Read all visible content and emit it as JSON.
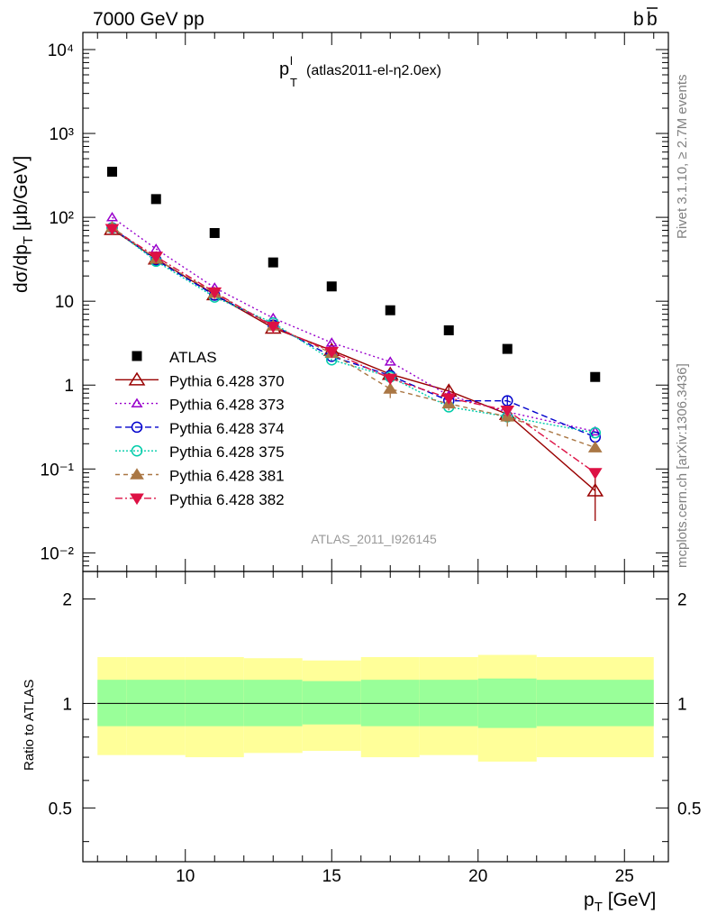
{
  "header": {
    "left": "7000 GeV pp",
    "right_base": "b",
    "right_bar": "b",
    "side_top": "Rivet 3.1.10, ≥ 2.7M events",
    "side_bottom": "mcplots.cern.ch [arXiv:1306.3436]"
  },
  "plot_label": {
    "main": "p",
    "sup": "l",
    "sub": "T",
    "rest": "(atlas2011-el-η2.0ex)"
  },
  "watermark": "ATLAS_2011_I926145",
  "axes": {
    "ylabel": {
      "a": "dσ/dp",
      "sub": "T",
      "b": " [μb/GeV]"
    },
    "ratio_ylabel": "Ratio to ATLAS",
    "xlabel": {
      "a": "p",
      "sub": "T",
      "b": " [GeV]"
    },
    "x_ticks": [
      "10",
      "15",
      "20",
      "25"
    ],
    "y_ticks": [
      "10⁻²",
      "10⁻¹",
      "1",
      "10",
      "10²",
      "10³",
      "10⁴"
    ],
    "ratio_ticks": [
      "0.5",
      "1",
      "2"
    ]
  },
  "chart_data": {
    "type": "scatter",
    "xlim": [
      6.5,
      26.5
    ],
    "ylim": [
      0.006,
      16000
    ],
    "yscale": "log",
    "ratio_ylim": [
      0.35,
      2.4
    ],
    "ratio_yscale": "log",
    "legend_position": "middle-left",
    "x": [
      7.5,
      9,
      11,
      13,
      15,
      17,
      19,
      21,
      24
    ],
    "bins": [
      [
        7,
        8
      ],
      [
        8,
        10
      ],
      [
        10,
        12
      ],
      [
        12,
        14
      ],
      [
        14,
        16
      ],
      [
        16,
        18
      ],
      [
        18,
        20
      ],
      [
        20,
        22
      ],
      [
        22,
        26
      ]
    ],
    "data": {
      "name": "ATLAS",
      "values": [
        350,
        165,
        65,
        29,
        15,
        7.8,
        4.5,
        2.7,
        1.25
      ]
    },
    "ratio_band_inner": [
      [
        0.86,
        1.17
      ],
      [
        0.86,
        1.17
      ],
      [
        0.86,
        1.17
      ],
      [
        0.86,
        1.17
      ],
      [
        0.87,
        1.16
      ],
      [
        0.86,
        1.17
      ],
      [
        0.86,
        1.17
      ],
      [
        0.85,
        1.18
      ],
      [
        0.86,
        1.17
      ]
    ],
    "ratio_band_outer": [
      [
        0.71,
        1.36
      ],
      [
        0.71,
        1.36
      ],
      [
        0.7,
        1.36
      ],
      [
        0.72,
        1.35
      ],
      [
        0.73,
        1.33
      ],
      [
        0.7,
        1.36
      ],
      [
        0.71,
        1.36
      ],
      [
        0.68,
        1.38
      ],
      [
        0.7,
        1.36
      ]
    ],
    "series": [
      {
        "name": "Pythia 6.428 370",
        "color": "#990000",
        "marker": "triangle-open",
        "dash": "",
        "values": [
          72,
          32,
          12,
          4.8,
          2.6,
          1.35,
          0.85,
          0.45,
          0.055
        ],
        "errors": [
          null,
          null,
          null,
          null,
          null,
          null,
          0.17,
          null,
          0.031
        ]
      },
      {
        "name": "Pythia 6.428 373",
        "color": "#9900cc",
        "marker": "triangle-open-small",
        "dash": "2,3",
        "values": [
          100,
          42,
          14.5,
          6.3,
          3.2,
          1.9,
          0.75,
          0.48,
          0.28
        ],
        "errors": []
      },
      {
        "name": "Pythia 6.428 374",
        "color": "#0000cc",
        "marker": "circle-open",
        "dash": "7,4",
        "values": [
          75,
          31,
          11.8,
          5.2,
          2.2,
          1.3,
          0.65,
          0.65,
          0.24
        ],
        "errors": [
          null,
          null,
          null,
          null,
          null,
          null,
          null,
          0.1,
          null
        ]
      },
      {
        "name": "Pythia 6.428 375",
        "color": "#00ccaa",
        "marker": "circle-open",
        "dash": "2,2",
        "values": [
          75,
          30,
          11.2,
          5.5,
          2.0,
          1.25,
          0.55,
          0.42,
          0.27
        ],
        "errors": []
      },
      {
        "name": "Pythia 6.428 381",
        "color": "#aa7744",
        "marker": "triangle-filled",
        "dash": "5,4",
        "values": [
          76,
          32,
          12.5,
          5.1,
          2.4,
          0.9,
          0.6,
          0.42,
          0.18
        ],
        "errors": [
          null,
          null,
          null,
          null,
          null,
          0.2,
          0.1,
          0.1,
          null
        ]
      },
      {
        "name": "Pythia 6.428 382",
        "color": "#dd1144",
        "marker": "triangle-down-filled",
        "dash": "8,3,2,3",
        "values": [
          73,
          34,
          12.8,
          5.0,
          2.5,
          1.2,
          0.7,
          0.5,
          0.09
        ],
        "errors": []
      }
    ]
  }
}
